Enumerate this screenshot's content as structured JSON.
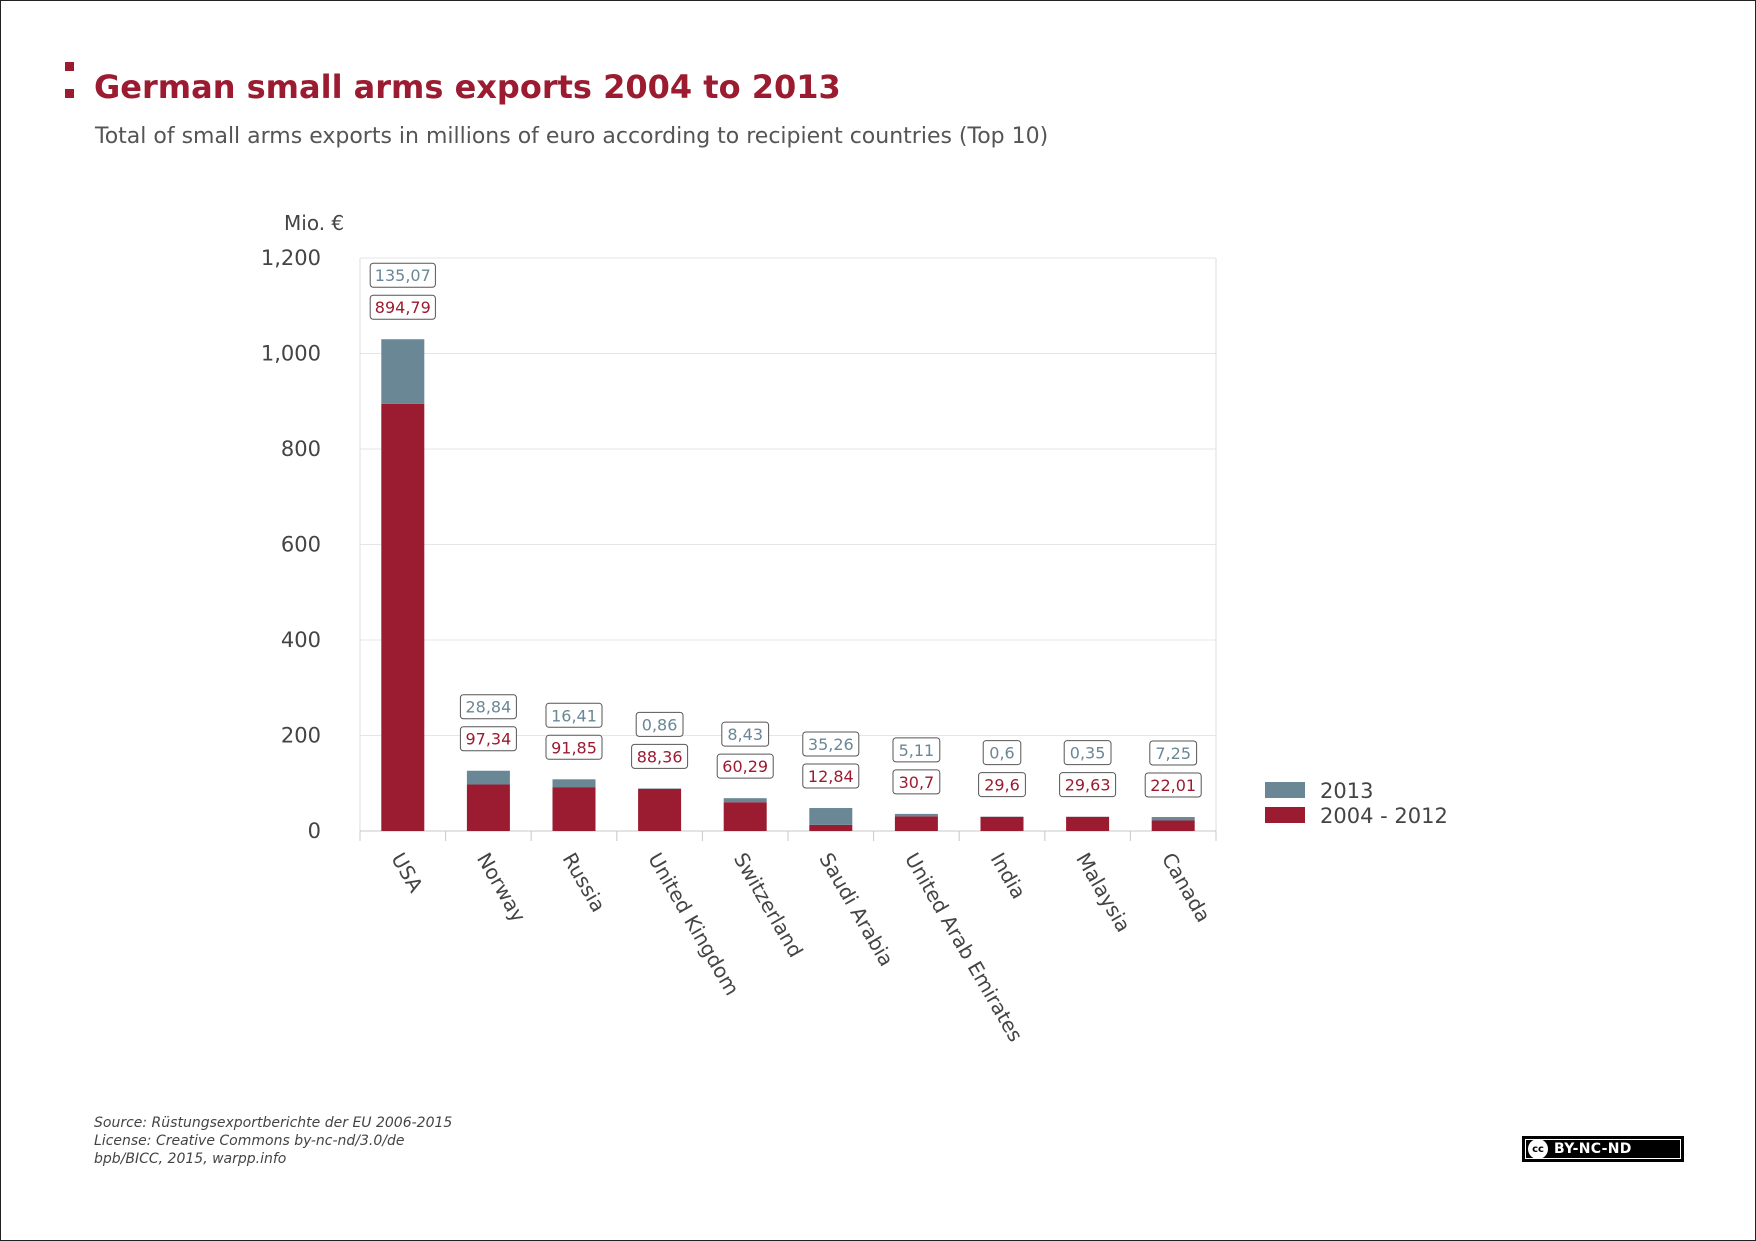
{
  "header": {
    "title": "German small arms exports 2004 to 2013",
    "subtitle": "Total of small arms exports in millions of euro according to recipient countries (Top 10)"
  },
  "colors": {
    "accent": "#9b1b30",
    "series_2013": "#6a8796",
    "series_2004_2012": "#9b1b30",
    "grid": "#e6e6e6"
  },
  "chart_data": {
    "type": "bar",
    "stacked": true,
    "title": "German small arms exports 2004 to 2013",
    "ylabel": "Mio. €",
    "xlabel": "",
    "ylim": [
      0,
      1200
    ],
    "yticks": [
      0,
      200,
      400,
      600,
      800,
      1000,
      1200
    ],
    "ytick_labels": [
      "0",
      "200",
      "400",
      "600",
      "800",
      "1,000",
      "1,200"
    ],
    "grid": true,
    "legend_position": "right",
    "categories": [
      "USA",
      "Norway",
      "Russia",
      "United Kingdom",
      "Switzerland",
      "Saudi Arabia",
      "United Arab Emirates",
      "India",
      "Malaysia",
      "Canada"
    ],
    "series": [
      {
        "name": "2004 - 2012",
        "color": "#9b1b30",
        "values": [
          894.79,
          97.34,
          91.85,
          88.36,
          60.29,
          12.84,
          30.7,
          29.6,
          29.63,
          22.01
        ],
        "labels": [
          "894,79",
          "97,34",
          "91,85",
          "88,36",
          "60,29",
          "12,84",
          "30,7",
          "29,6",
          "29,63",
          "22,01"
        ]
      },
      {
        "name": "2013",
        "color": "#6a8796",
        "values": [
          135.07,
          28.84,
          16.41,
          0.86,
          8.43,
          35.26,
          5.11,
          0.6,
          0.35,
          7.25
        ],
        "labels": [
          "135,07",
          "28,84",
          "16,41",
          "0,86",
          "8,43",
          "35,26",
          "5,11",
          "0,6",
          "0,35",
          "7,25"
        ]
      }
    ],
    "legend": [
      "2013",
      "2004 - 2012"
    ]
  },
  "footer": {
    "source": "Source: Rüstungsexportberichte der EU 2006-2015",
    "license": "License: Creative Commons by-nc-nd/3.0/de",
    "credit": "bpb/BICC, 2015, warpp.info"
  },
  "badge": {
    "cc_symbol": "cc",
    "text": "BY-NC-ND"
  }
}
